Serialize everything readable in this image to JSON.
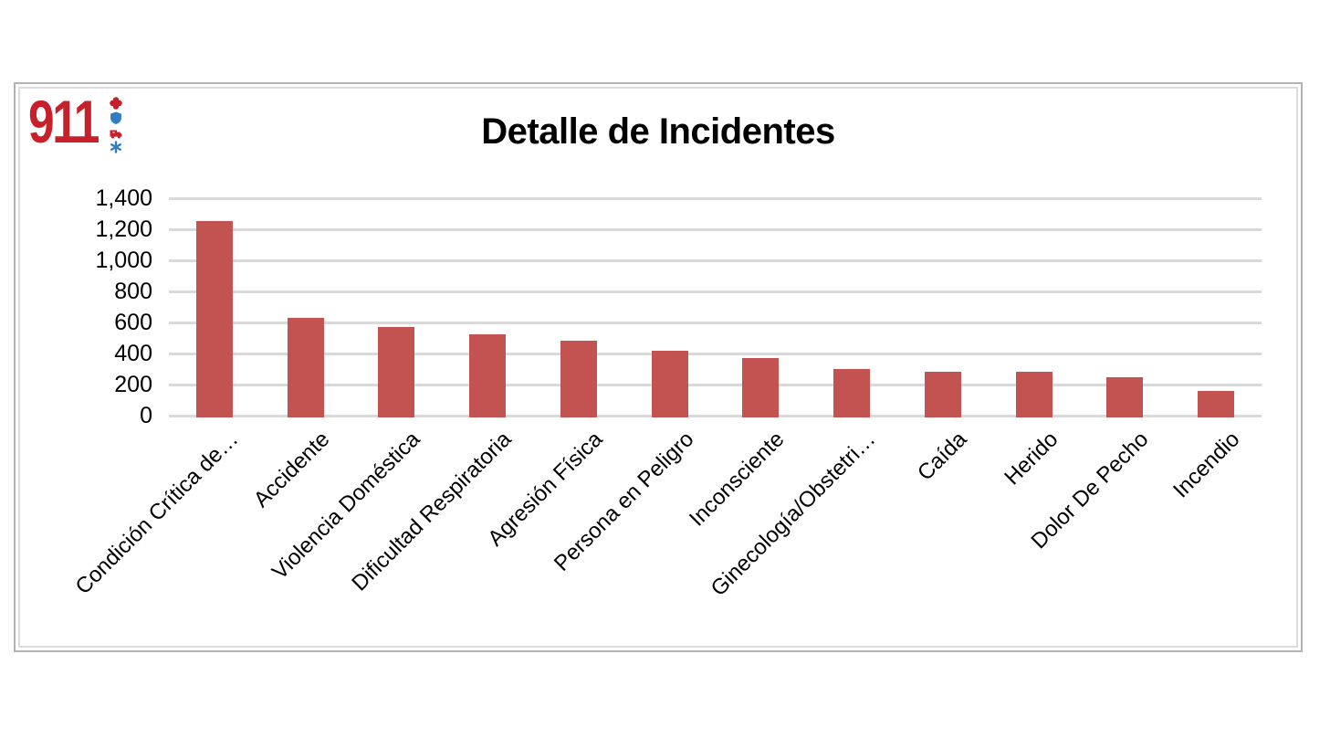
{
  "logo": {
    "text": "911",
    "icons": [
      {
        "name": "medic-cross-icon",
        "color": "#c8202a"
      },
      {
        "name": "shield-icon",
        "color": "#2f7dc0"
      },
      {
        "name": "ambulance-icon",
        "color": "#c8202a"
      },
      {
        "name": "star-of-life-icon",
        "color": "#2f7dc0"
      }
    ]
  },
  "chart_data": {
    "type": "bar",
    "title": "Detalle de Incidentes",
    "categories": [
      "Condición Crítica de…",
      "Accidente",
      "Violencia Doméstica",
      "Dificultad Respiratoria",
      "Agresión Física",
      "Persona en Peligro",
      "Inconsciente",
      "Ginecología/Obstetri…",
      "Caída",
      "Herido",
      "Dolor De Pecho",
      "Incendio"
    ],
    "values": [
      1255,
      630,
      570,
      525,
      480,
      420,
      370,
      300,
      280,
      280,
      250,
      160
    ],
    "xlabel": "",
    "ylabel": "",
    "ylim": [
      0,
      1400
    ],
    "ytick_step": 200,
    "ytick_labels": [
      "0",
      "200",
      "400",
      "600",
      "800",
      "1,000",
      "1,200",
      "1,400"
    ],
    "bar_color": "#c25350",
    "grid_color": "#d9d9d9",
    "grid": true,
    "legend": "none",
    "x_label_rotation_deg": 45
  }
}
